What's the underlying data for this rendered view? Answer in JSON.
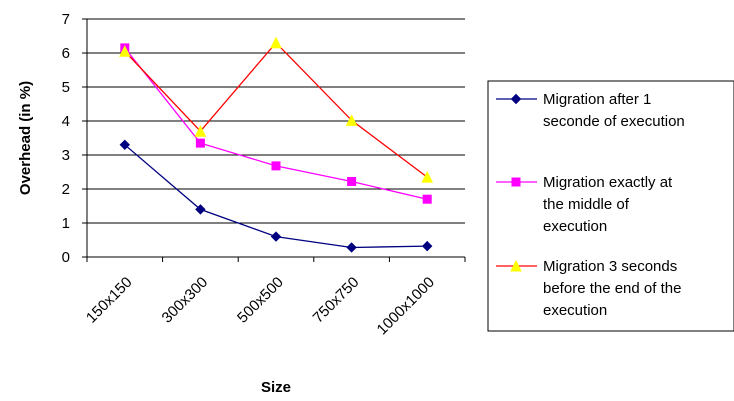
{
  "chart_data": {
    "type": "line",
    "categories": [
      "150x150",
      "300x300",
      "500x500",
      "750x750",
      "1000x1000"
    ],
    "series": [
      {
        "name": "Migration after 1 seconde of execution",
        "legend_lines": [
          "Migration after 1",
          "seconde of execution"
        ],
        "color": "#000080",
        "marker": "diamond",
        "values": [
          3.3,
          1.4,
          0.6,
          0.28,
          0.32
        ]
      },
      {
        "name": "Migration exactly at the middle of execution",
        "legend_lines": [
          "Migration exactly at",
          "the middle of",
          "execution"
        ],
        "color": "#ff00ff",
        "marker": "square",
        "values": [
          6.15,
          3.35,
          2.68,
          2.22,
          1.7
        ]
      },
      {
        "name": "Migration 3 seconds before the end of the execution",
        "legend_lines": [
          "Migration 3 seconds",
          "before the end of the",
          "execution"
        ],
        "color": "#ff0000",
        "marker_color": "#ffff00",
        "marker": "triangle",
        "values": [
          6.05,
          3.7,
          6.3,
          4.02,
          2.35
        ]
      }
    ],
    "xlabel": "Size",
    "ylabel": "Overhead (in %)",
    "ylim": [
      0,
      7
    ],
    "yticks": [
      0,
      1,
      2,
      3,
      4,
      5,
      6,
      7
    ],
    "grid": true,
    "legend_position": "right"
  }
}
